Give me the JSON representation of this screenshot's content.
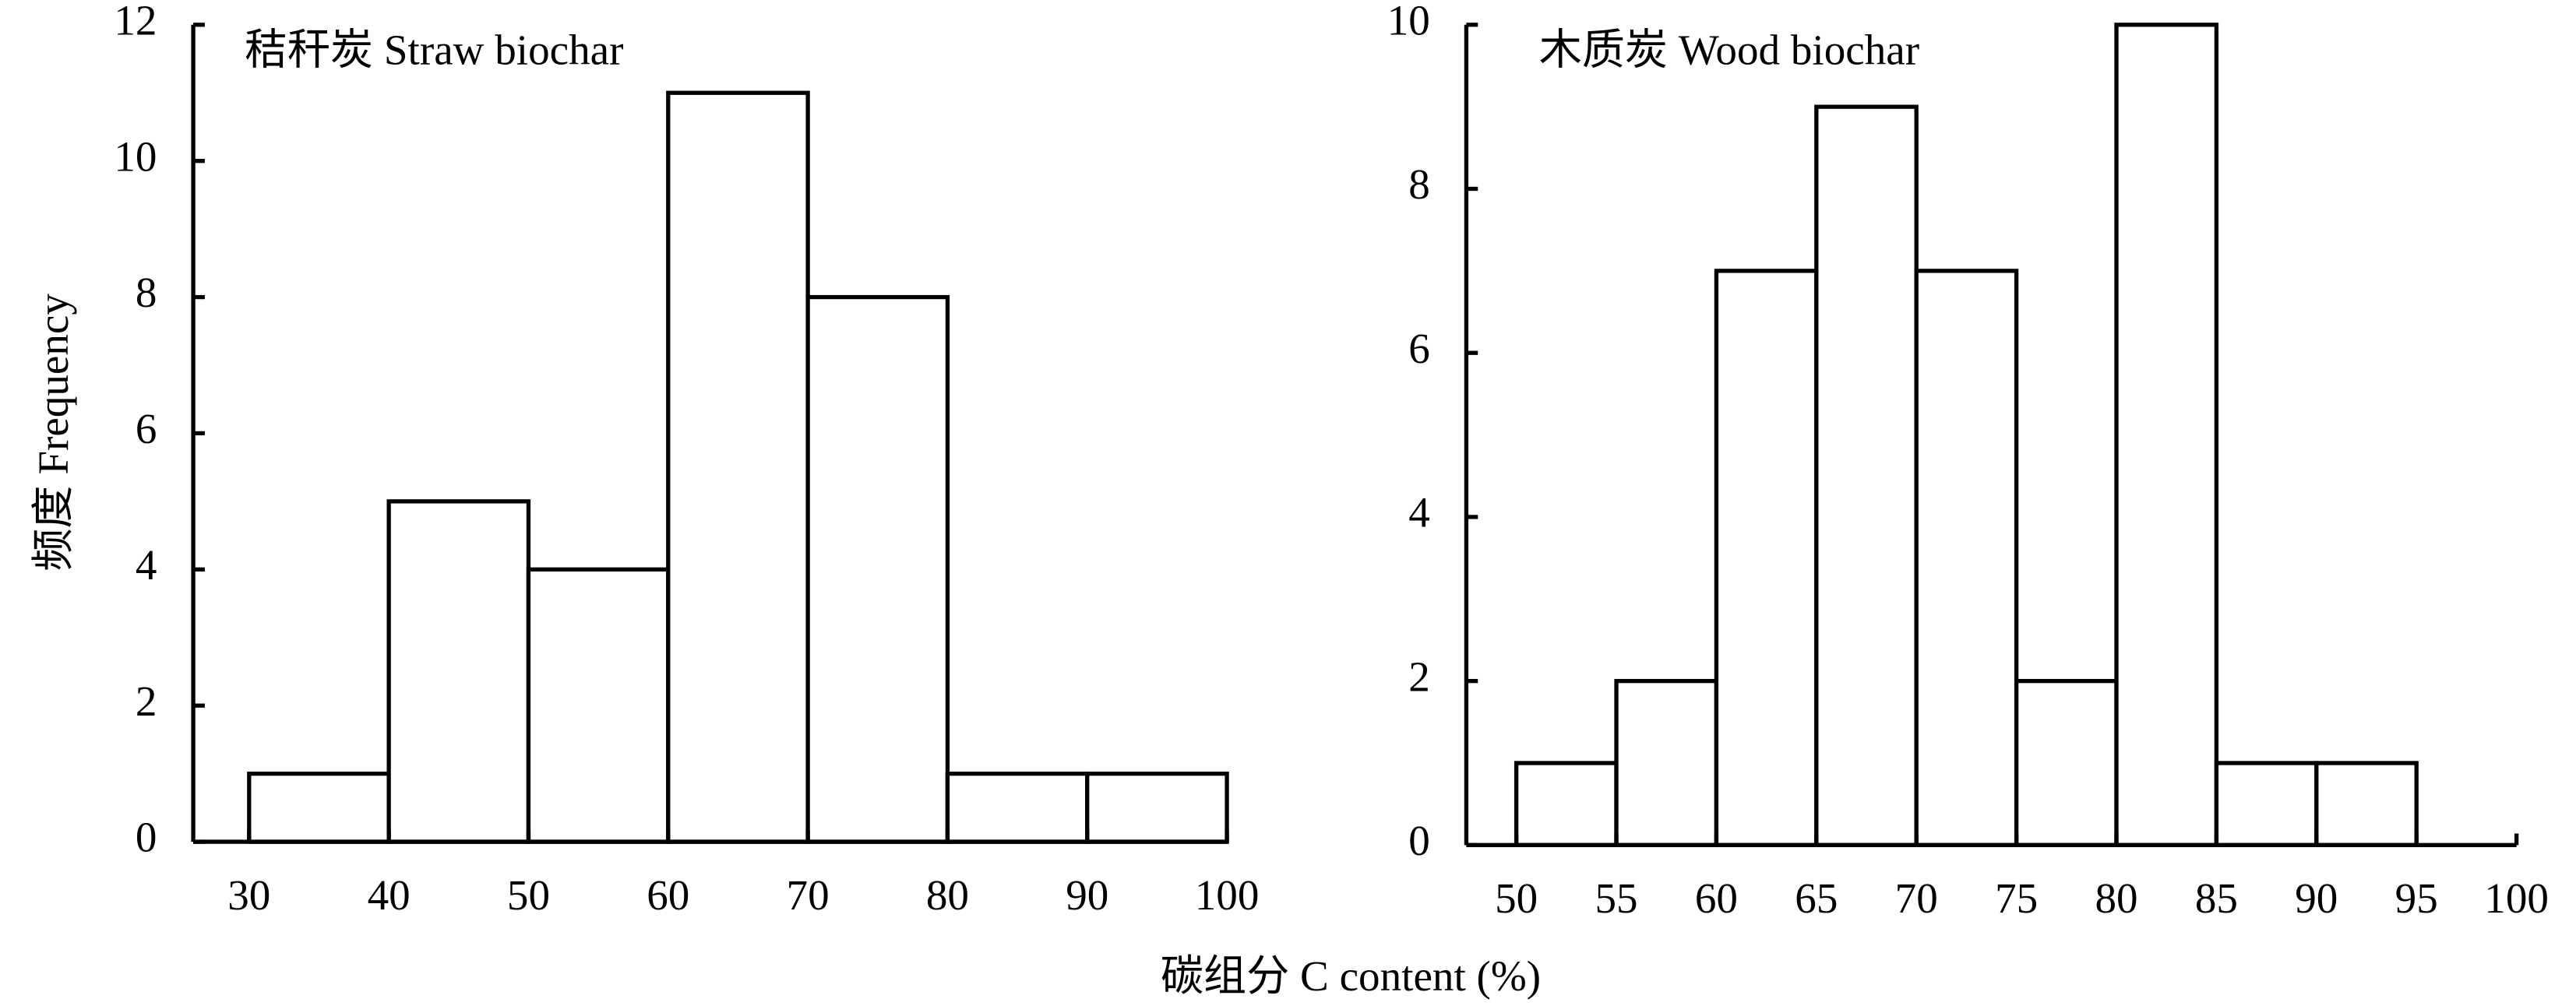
{
  "chart_data": [
    {
      "type": "histogram",
      "title": "秸秆炭 Straw biochar",
      "xlabel": "碳组分 C content (%)",
      "ylabel": "频度 Frequency",
      "bins": [
        30,
        40,
        50,
        60,
        70,
        80,
        90,
        100
      ],
      "values": [
        1,
        5,
        4,
        11,
        8,
        1,
        1
      ],
      "xlim": [
        26,
        100
      ],
      "xticks": [
        30,
        40,
        50,
        60,
        70,
        80,
        90,
        100
      ],
      "ylim": [
        0,
        12
      ],
      "yticks": [
        0,
        2,
        4,
        6,
        8,
        10,
        12
      ]
    },
    {
      "type": "histogram",
      "title": "木质炭 Wood biochar",
      "bins": [
        50,
        55,
        60,
        65,
        70,
        75,
        80,
        85,
        90,
        95
      ],
      "values": [
        1,
        2,
        7,
        9,
        7,
        2,
        10,
        1,
        1
      ],
      "xlim": [
        47.5,
        100
      ],
      "xticks": [
        50,
        55,
        60,
        65,
        70,
        75,
        80,
        85,
        90,
        95,
        100
      ],
      "ylim": [
        0,
        10
      ],
      "yticks": [
        0,
        2,
        4,
        6,
        8,
        10
      ]
    }
  ]
}
